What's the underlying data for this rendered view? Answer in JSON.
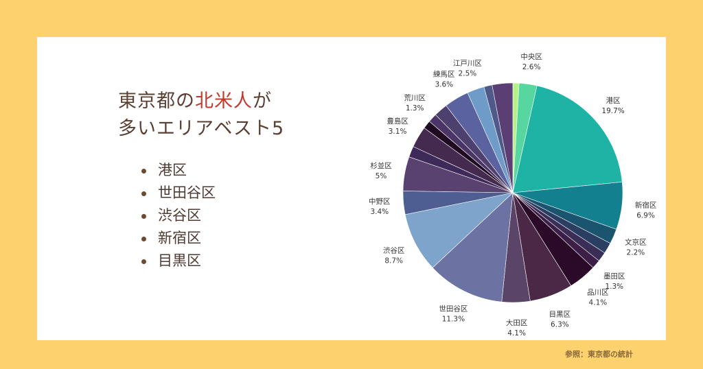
{
  "title": {
    "line1_pre": "東京都の",
    "line1_highlight": "北米人",
    "line1_post": "が",
    "line2": "多いエリアベスト5"
  },
  "top5": [
    "港区",
    "世田谷区",
    "渋谷区",
    "新宿区",
    "目黒区"
  ],
  "source": "参照：東京都の統計",
  "chart_data": {
    "type": "pie",
    "start": "top",
    "direction": "clockwise",
    "slices": [
      {
        "label": "",
        "value": 0.9,
        "display": "",
        "color": "#b6f28a"
      },
      {
        "label": "中央区",
        "value": 2.6,
        "display": "2.6%",
        "color": "#57d6a0"
      },
      {
        "label": "港区",
        "value": 19.7,
        "display": "19.7%",
        "color": "#1fb3a6"
      },
      {
        "label": "新宿区",
        "value": 6.9,
        "display": "6.9%",
        "color": "#13808f"
      },
      {
        "label": "文京区",
        "value": 2.2,
        "display": "2.2%",
        "color": "#1a546e"
      },
      {
        "label": "",
        "value": 1.6,
        "display": "",
        "color": "#2a3e62"
      },
      {
        "label": "",
        "value": 1.4,
        "display": "",
        "color": "#3a2e56"
      },
      {
        "label": "墨田区",
        "value": 1.3,
        "display": "1.3%",
        "color": "#3b1f46"
      },
      {
        "label": "品川区",
        "value": 4.1,
        "display": "4.1%",
        "color": "#2a0a28"
      },
      {
        "label": "目黒区",
        "value": 6.3,
        "display": "6.3%",
        "color": "#4a2846"
      },
      {
        "label": "大田区",
        "value": 4.1,
        "display": "4.1%",
        "color": "#5a4468"
      },
      {
        "label": "世田谷区",
        "value": 11.3,
        "display": "11.3%",
        "color": "#6c73a2"
      },
      {
        "label": "渋谷区",
        "value": 8.7,
        "display": "8.7%",
        "color": "#7fa4cc"
      },
      {
        "label": "中野区",
        "value": 3.4,
        "display": "3.4%",
        "color": "#4e5e92"
      },
      {
        "label": "杉並区",
        "value": 5,
        "display": "5%",
        "color": "#5a4270"
      },
      {
        "label": "",
        "value": 1.6,
        "display": "",
        "color": "#3e2a58"
      },
      {
        "label": "豊島区",
        "value": 3.1,
        "display": "3.1%",
        "color": "#432a4e"
      },
      {
        "label": "",
        "value": 1.2,
        "display": "",
        "color": "#1f0a22"
      },
      {
        "label": "荒川区",
        "value": 1.3,
        "display": "1.3%",
        "color": "#4a3566"
      },
      {
        "label": "",
        "value": 2.0,
        "display": "",
        "color": "#4d3f6e"
      },
      {
        "label": "練馬区",
        "value": 3.6,
        "display": "3.6%",
        "color": "#5a62a0"
      },
      {
        "label": "江戸川区",
        "value": 2.5,
        "display": "2.5%",
        "color": "#6f9bc8"
      },
      {
        "label": "",
        "value": 1.2,
        "display": "",
        "color": "#4f5a88"
      },
      {
        "label": "",
        "value": 3.0,
        "display": "",
        "color": "#5b3f74"
      }
    ]
  }
}
